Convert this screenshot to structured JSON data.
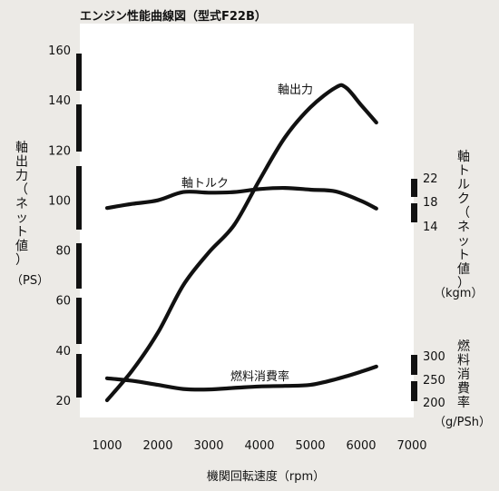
{
  "chart_data": {
    "type": "line",
    "title": "エンジン性能曲線図（型式F22B）",
    "xlabel": "機関回転速度（rpm）",
    "x_ticks": [
      1000,
      2000,
      3000,
      4000,
      5000,
      6000,
      7000
    ],
    "xlim": [
      1000,
      7000
    ],
    "left_axis": {
      "label_chars": [
        "軸",
        "出",
        "力",
        "（",
        "ネ",
        "ッ",
        "ト",
        "値",
        "）"
      ],
      "unit": "（PS）",
      "ylim": [
        20,
        160
      ],
      "ticks": [
        20,
        40,
        60,
        80,
        100,
        120,
        140,
        160
      ]
    },
    "right_axis_torque": {
      "label_chars": [
        "軸",
        "ト",
        "ル",
        "ク",
        "（",
        "ネ",
        "ッ",
        "ト",
        "値",
        "）"
      ],
      "unit": "（kgm）",
      "ticks": [
        14,
        18,
        22
      ]
    },
    "right_axis_fuel": {
      "label_chars": [
        "燃",
        "料",
        "消",
        "費",
        "率"
      ],
      "unit": "（g/PSh）",
      "ticks": [
        200,
        250,
        300
      ]
    },
    "series": [
      {
        "name": "軸出力",
        "axis": "power_ps",
        "points": [
          [
            1000,
            20
          ],
          [
            1500,
            32
          ],
          [
            2000,
            47
          ],
          [
            2500,
            66
          ],
          [
            3000,
            79
          ],
          [
            3500,
            90
          ],
          [
            4000,
            108
          ],
          [
            4500,
            125
          ],
          [
            5000,
            137
          ],
          [
            5500,
            145
          ],
          [
            5700,
            145
          ],
          [
            6000,
            138
          ],
          [
            6300,
            131
          ]
        ]
      },
      {
        "name": "軸トルク",
        "axis": "torque_kgm",
        "points": [
          [
            1000,
            16.9
          ],
          [
            1500,
            17.6
          ],
          [
            2000,
            18.2
          ],
          [
            2500,
            19.6
          ],
          [
            3000,
            19.5
          ],
          [
            3500,
            19.6
          ],
          [
            4000,
            20.1
          ],
          [
            4500,
            20.3
          ],
          [
            5000,
            20.0
          ],
          [
            5500,
            19.7
          ],
          [
            6000,
            18.1
          ],
          [
            6300,
            16.8
          ]
        ]
      },
      {
        "name": "燃料消費率",
        "axis": "bsfc_gpsh",
        "points": [
          [
            1000,
            245
          ],
          [
            1500,
            240
          ],
          [
            2000,
            232
          ],
          [
            2500,
            224
          ],
          [
            3000,
            223
          ],
          [
            3500,
            226
          ],
          [
            4000,
            229
          ],
          [
            4500,
            230
          ],
          [
            5000,
            232
          ],
          [
            5500,
            243
          ],
          [
            6000,
            258
          ],
          [
            6300,
            268
          ]
        ]
      }
    ]
  }
}
